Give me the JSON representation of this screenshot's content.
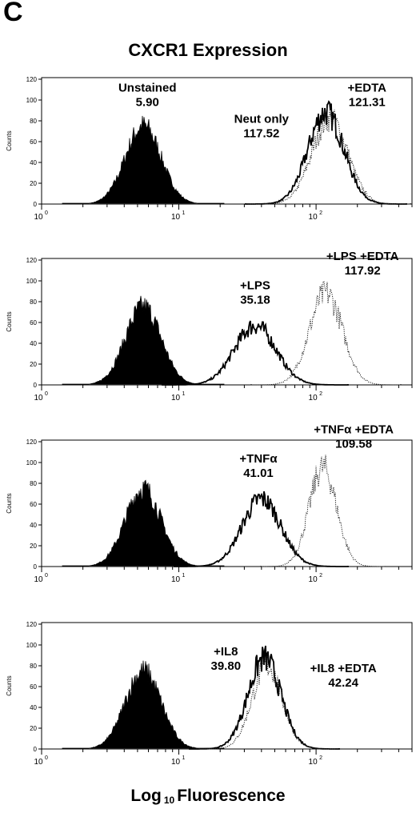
{
  "panel_letter": "C",
  "title": "CXCR1 Expression",
  "xlabel_prefix": "Log",
  "xlabel_sub": "10",
  "xlabel_suffix": "Fluorescence",
  "chart_data": [
    {
      "type": "area",
      "ylabel": "Counts",
      "x_scale": "log",
      "xlim": [
        1,
        500
      ],
      "ylim": [
        0,
        120
      ],
      "y_ticks": [
        0,
        20,
        40,
        60,
        80,
        100,
        120
      ],
      "x_ticks": [
        {
          "base": "10",
          "exp": "0"
        },
        {
          "base": "10",
          "exp": "1"
        },
        {
          "base": "10",
          "exp": "2"
        }
      ],
      "series": [
        {
          "name": "Unstained",
          "style": "filled",
          "peak_x": 5.5,
          "peak_y": 75,
          "width": 0.13,
          "mfi": "5.90"
        },
        {
          "name": "Neut only",
          "style": "solid",
          "peak_x": 118,
          "peak_y": 88,
          "width": 0.13,
          "mfi": "117.52"
        },
        {
          "name": "+EDTA",
          "style": "dotted",
          "peak_x": 126,
          "peak_y": 82,
          "width": 0.13,
          "mfi": "121.31"
        }
      ],
      "annotations": [
        {
          "lines": [
            "Unstained",
            "5.90"
          ],
          "x": 5.9,
          "y": 108
        },
        {
          "lines": [
            "Neut only",
            "117.52"
          ],
          "x": 40,
          "y": 78
        },
        {
          "lines": [
            "+EDTA",
            "121.31"
          ],
          "x": 235,
          "y": 108
        }
      ]
    },
    {
      "type": "area",
      "ylabel": "Counts",
      "x_scale": "log",
      "xlim": [
        1,
        500
      ],
      "ylim": [
        0,
        120
      ],
      "y_ticks": [
        0,
        20,
        40,
        60,
        80,
        100,
        120
      ],
      "x_ticks": [
        {
          "base": "10",
          "exp": "0"
        },
        {
          "base": "10",
          "exp": "1"
        },
        {
          "base": "10",
          "exp": "2"
        }
      ],
      "series": [
        {
          "name": "Unstained",
          "style": "filled",
          "peak_x": 5.5,
          "peak_y": 75,
          "width": 0.13,
          "mfi": ""
        },
        {
          "name": "+LPS",
          "style": "solid",
          "peak_x": 36,
          "peak_y": 57,
          "width": 0.15,
          "mfi": "35.18"
        },
        {
          "name": "+LPS +EDTA",
          "style": "dotted",
          "peak_x": 118,
          "peak_y": 88,
          "width": 0.12,
          "mfi": "117.92"
        }
      ],
      "annotations": [
        {
          "lines": [
            "+LPS",
            "35.18"
          ],
          "x": 36,
          "y": 92
        },
        {
          "lines": [
            "+LPS +EDTA",
            "117.92"
          ],
          "x": 218,
          "y": 120
        }
      ]
    },
    {
      "type": "area",
      "ylabel": "Counts",
      "x_scale": "log",
      "xlim": [
        1,
        500
      ],
      "ylim": [
        0,
        120
      ],
      "y_ticks": [
        0,
        20,
        40,
        60,
        80,
        100,
        120
      ],
      "x_ticks": [
        {
          "base": "10",
          "exp": "0"
        },
        {
          "base": "10",
          "exp": "1"
        },
        {
          "base": "10",
          "exp": "2"
        }
      ],
      "series": [
        {
          "name": "Unstained",
          "style": "filled",
          "peak_x": 5.5,
          "peak_y": 75,
          "width": 0.13,
          "mfi": ""
        },
        {
          "name": "+TNFα",
          "style": "solid",
          "peak_x": 40,
          "peak_y": 65,
          "width": 0.14,
          "mfi": "41.01"
        },
        {
          "name": "+TNFα +EDTA",
          "style": "dotted",
          "peak_x": 112,
          "peak_y": 95,
          "width": 0.1,
          "mfi": "109.58"
        }
      ],
      "annotations": [
        {
          "lines": [
            "+TNFα",
            "41.01"
          ],
          "x": 38,
          "y": 100
        },
        {
          "lines": [
            "+TNFα +EDTA",
            "109.58"
          ],
          "x": 188,
          "y": 128
        }
      ]
    },
    {
      "type": "area",
      "ylabel": "Counts",
      "x_scale": "log",
      "xlim": [
        1,
        500
      ],
      "ylim": [
        0,
        120
      ],
      "y_ticks": [
        0,
        20,
        40,
        60,
        80,
        100,
        120
      ],
      "x_ticks": [
        {
          "base": "10",
          "exp": "0"
        },
        {
          "base": "10",
          "exp": "1"
        },
        {
          "base": "10",
          "exp": "2"
        }
      ],
      "series": [
        {
          "name": "Unstained",
          "style": "filled",
          "peak_x": 5.5,
          "peak_y": 75,
          "width": 0.13,
          "mfi": ""
        },
        {
          "name": "+IL8",
          "style": "solid",
          "peak_x": 42,
          "peak_y": 87,
          "width": 0.12,
          "mfi": "39.80"
        },
        {
          "name": "+IL8 +EDTA",
          "style": "dotted",
          "peak_x": 44,
          "peak_y": 80,
          "width": 0.11,
          "mfi": "42.24"
        }
      ],
      "annotations": [
        {
          "lines": [
            "+IL8",
            "39.80"
          ],
          "x": 22,
          "y": 90
        },
        {
          "lines": [
            "+IL8 +EDTA",
            "42.24"
          ],
          "x": 158,
          "y": 74
        }
      ]
    }
  ]
}
